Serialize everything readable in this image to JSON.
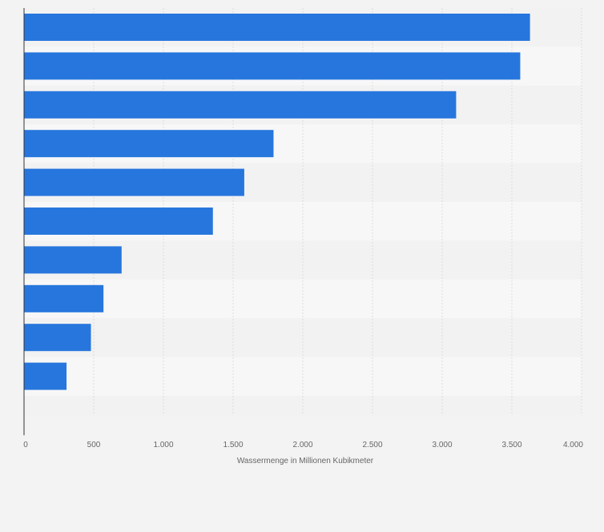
{
  "chart_data": {
    "type": "bar",
    "orientation": "horizontal",
    "categories": [
      "",
      "",
      "",
      "",
      "",
      "",
      "",
      "",
      "",
      ""
    ],
    "values": [
      3630,
      3560,
      3100,
      1790,
      1580,
      1355,
      700,
      570,
      480,
      305
    ],
    "xlabel": "Wassermenge in Millionen Kubikmeter",
    "ylabel": "",
    "xlim": [
      0,
      4000
    ],
    "tick_labels": [
      "0",
      "500",
      "1.000",
      "1.500",
      "2.000",
      "2.500",
      "3.000",
      "3.500",
      "4.000"
    ],
    "grid": true,
    "legend": "none",
    "colors": {
      "bar": "#2776dd",
      "background": "#f3f3f3",
      "band_light": "#f7f7f8",
      "band_dark": "#f2f2f3",
      "grid": "#dcdcdc",
      "axis": "#333333",
      "text": "#666666"
    }
  }
}
